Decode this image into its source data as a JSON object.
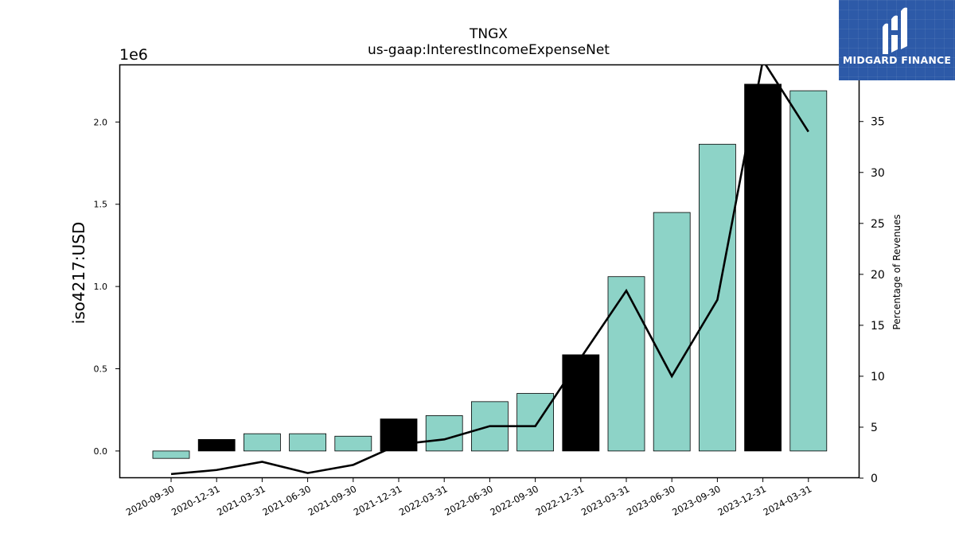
{
  "chart_data": {
    "type": "bar",
    "title": "TNGX",
    "subtitle": "us-gaap:InterestIncomeExpenseNet",
    "ylabel": "iso4217:USD",
    "y2label": "Percentage of Revenues",
    "y_scale_label": "1e6",
    "ylim": [
      -0.165,
      2.35
    ],
    "y2lim": [
      0,
      40.6
    ],
    "y_ticks": [
      "0.0",
      "0.5",
      "1.0",
      "1.5",
      "2.0"
    ],
    "y2_ticks": [
      "0",
      "5",
      "10",
      "15",
      "20",
      "25",
      "30",
      "35"
    ],
    "categories": [
      "2020-09-30",
      "2020-12-31",
      "2021-03-31",
      "2021-06-30",
      "2021-09-30",
      "2021-12-31",
      "2022-03-31",
      "2022-06-30",
      "2022-09-30",
      "2022-12-31",
      "2023-03-31",
      "2023-06-30",
      "2023-09-30",
      "2023-12-31",
      "2024-03-31"
    ],
    "series": [
      {
        "kind": "bar",
        "axis": "left",
        "values": [
          -0.045,
          0.07,
          0.105,
          0.105,
          0.09,
          0.195,
          0.215,
          0.3,
          0.35,
          0.585,
          1.06,
          1.45,
          1.865,
          2.23,
          2.19
        ],
        "highlight": [
          false,
          true,
          false,
          false,
          false,
          true,
          false,
          false,
          false,
          true,
          false,
          false,
          false,
          true,
          false
        ]
      },
      {
        "kind": "line",
        "axis": "right",
        "values": [
          0.4,
          0.8,
          1.6,
          0.5,
          1.3,
          3.3,
          3.8,
          5.1,
          5.1,
          11.8,
          18.4,
          10.0,
          17.5,
          41.0,
          34.0
        ]
      }
    ],
    "colors": {
      "bar": "#8dd3c7",
      "highlight": "#000000",
      "line": "#000000"
    },
    "grid": false,
    "legend": "none"
  },
  "logo": {
    "text": "MIDGARD FINANCE"
  }
}
